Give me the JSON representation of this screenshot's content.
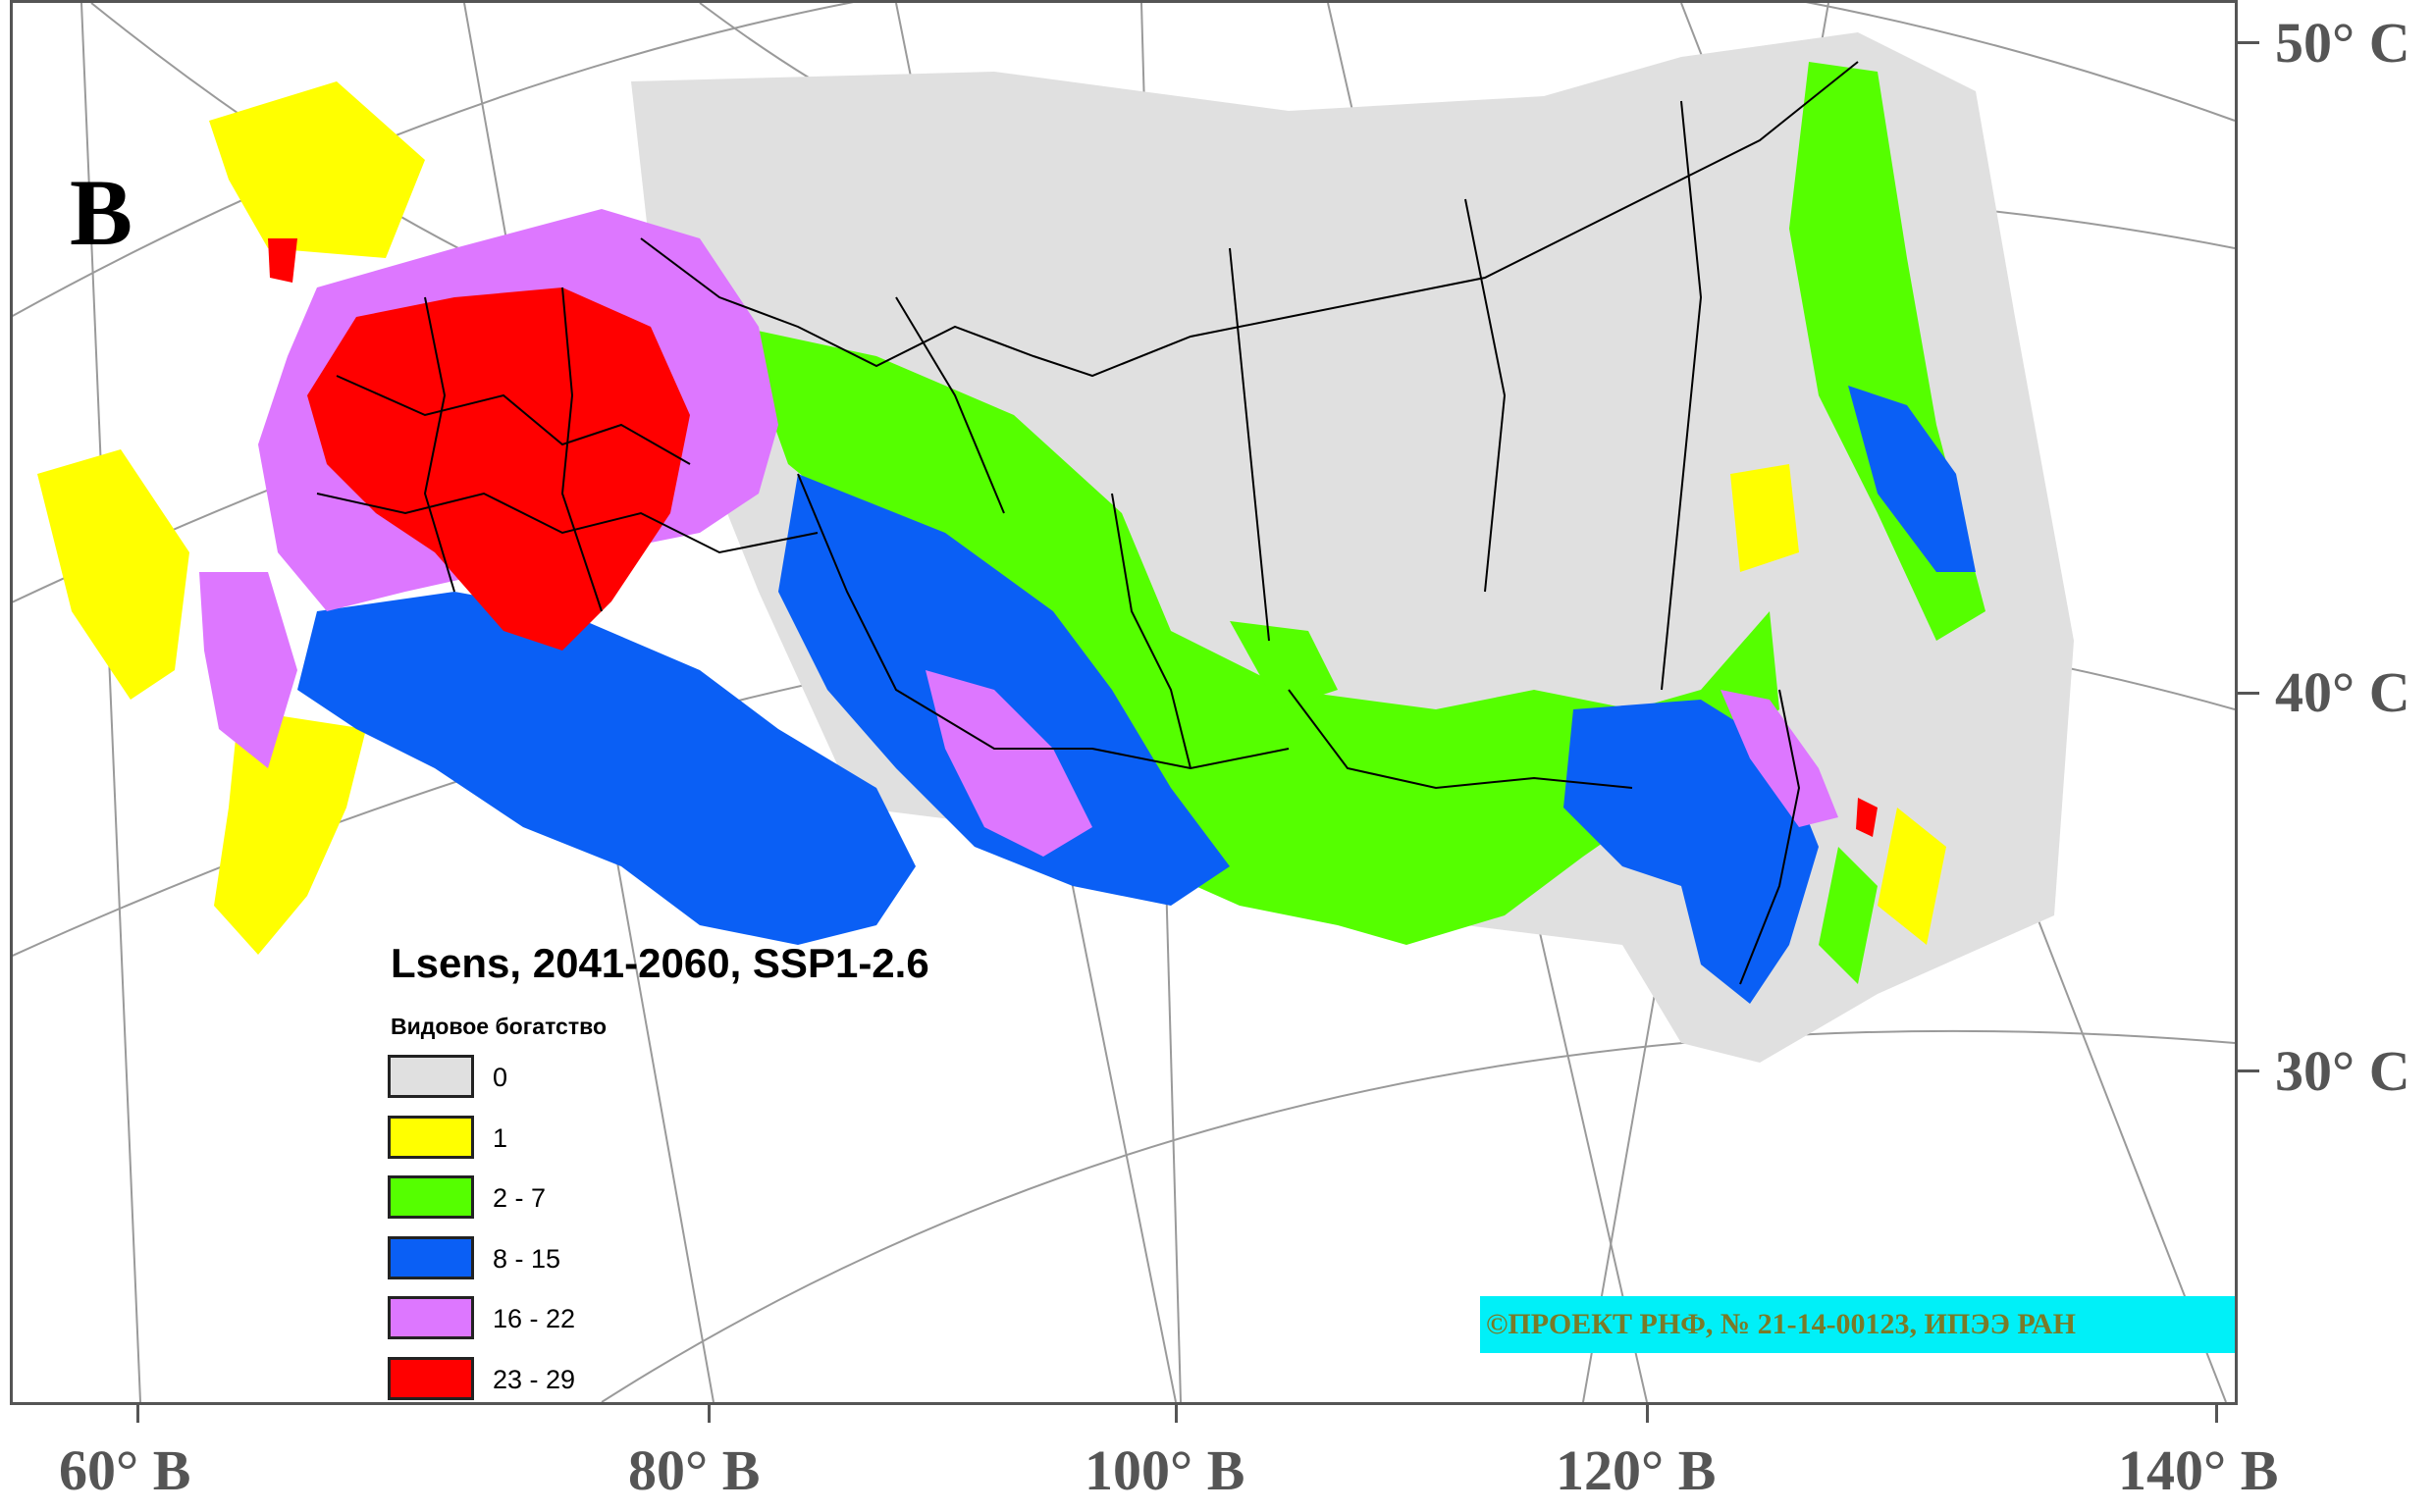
{
  "panel_letter": "B",
  "map_title": "Lsens, 2041-2060, SSP1-2.6",
  "legend": {
    "title": "Видовое богатство",
    "items": [
      {
        "label": "0",
        "color": "#e0e0e0"
      },
      {
        "label": "1",
        "color": "#ffff00"
      },
      {
        "label": "2 - 7",
        "color": "#55ff00"
      },
      {
        "label": "8 - 15",
        "color": "#0a5ff5"
      },
      {
        "label": "16 - 22",
        "color": "#dd77ff"
      },
      {
        "label": "23 - 29",
        "color": "#ff0000"
      }
    ]
  },
  "copyright": "©ПРОЕКТ РНФ, № 21-14-00123, ИПЭЭ РАН",
  "latitude_labels": [
    "50° С",
    "40° С",
    "30° С"
  ],
  "longitude_labels": [
    "60° В",
    "80° В",
    "100° В",
    "120° В",
    "140° В"
  ],
  "colors": {
    "background_region": "#e0e0e0",
    "graticule": "#9a9a9a",
    "frame": "#555555",
    "copyright_bg": "#00f0f8",
    "copyright_text": "#7a7a28"
  }
}
